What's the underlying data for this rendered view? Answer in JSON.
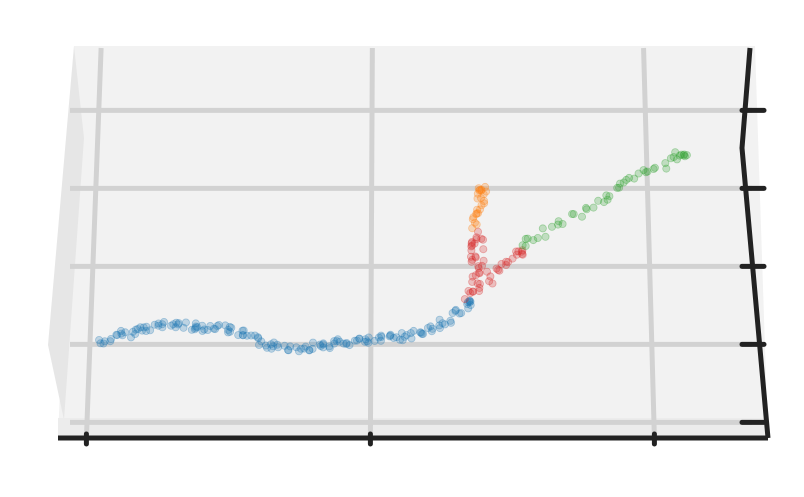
{
  "chart_data": {
    "type": "scatter",
    "projection": "3d",
    "grid": true,
    "legend": "none",
    "title": "",
    "xlabel": "",
    "ylabel": "",
    "zlabel": "",
    "xlim": [
      0,
      2.5
    ],
    "ylim": [
      0,
      5
    ],
    "xticks": [
      0.1,
      1.1,
      2.1
    ],
    "yticks": [
      0.2,
      1.2,
      2.2,
      3.2,
      4.2,
      5.2
    ],
    "point_alpha": 0.25,
    "series": [
      {
        "color": "#1f77b4",
        "points": [
          [
            0.15,
            1.22
          ],
          [
            0.2,
            1.28
          ],
          [
            0.25,
            1.35
          ],
          [
            0.3,
            1.4
          ],
          [
            0.35,
            1.43
          ],
          [
            0.4,
            1.46
          ],
          [
            0.45,
            1.44
          ],
          [
            0.5,
            1.41
          ],
          [
            0.55,
            1.44
          ],
          [
            0.6,
            1.4
          ],
          [
            0.65,
            1.33
          ],
          [
            0.7,
            1.25
          ],
          [
            0.75,
            1.19
          ],
          [
            0.8,
            1.17
          ],
          [
            0.85,
            1.16
          ],
          [
            0.9,
            1.18
          ],
          [
            0.95,
            1.2
          ],
          [
            1.0,
            1.22
          ],
          [
            1.05,
            1.24
          ],
          [
            1.1,
            1.24
          ],
          [
            1.15,
            1.27
          ],
          [
            1.2,
            1.3
          ],
          [
            1.25,
            1.33
          ],
          [
            1.3,
            1.38
          ],
          [
            1.35,
            1.46
          ],
          [
            1.4,
            1.58
          ],
          [
            1.45,
            1.72
          ]
        ]
      },
      {
        "color": "#d62728",
        "points": [
          [
            1.45,
            1.78
          ],
          [
            1.47,
            1.95
          ],
          [
            1.48,
            2.1
          ],
          [
            1.47,
            2.3
          ],
          [
            1.47,
            2.48
          ],
          [
            1.48,
            2.62
          ],
          [
            1.52,
            2.0
          ],
          [
            1.57,
            2.2
          ],
          [
            1.62,
            2.38
          ]
        ]
      },
      {
        "color": "#ff7f0e",
        "points": [
          [
            1.47,
            2.72
          ],
          [
            1.48,
            2.88
          ],
          [
            1.49,
            3.02
          ],
          [
            1.5,
            3.18
          ]
        ]
      },
      {
        "color": "#2ca02c",
        "points": [
          [
            1.62,
            2.45
          ],
          [
            1.7,
            2.62
          ],
          [
            1.8,
            2.82
          ],
          [
            1.9,
            3.02
          ],
          [
            1.97,
            3.2
          ],
          [
            2.05,
            3.35
          ],
          [
            2.13,
            3.5
          ],
          [
            2.2,
            3.65
          ]
        ]
      }
    ]
  }
}
